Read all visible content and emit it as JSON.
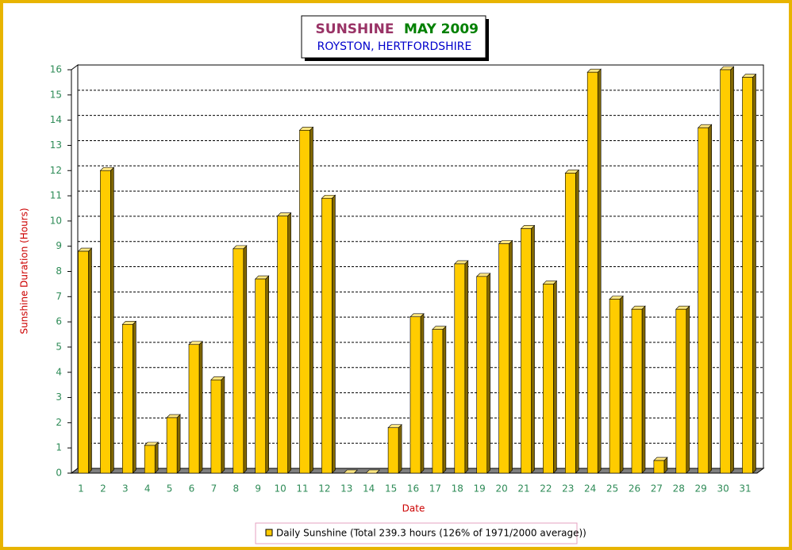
{
  "chart_data": {
    "type": "bar3d",
    "title": "SUNSHINE",
    "period": "MAY 2009",
    "subtitle": "ROYSTON, HERTFORDSHIRE",
    "x_label": "Date",
    "y_label": "Sunshine Duration (Hours)",
    "categories": [
      "1",
      "2",
      "3",
      "4",
      "5",
      "6",
      "7",
      "8",
      "9",
      "10",
      "11",
      "12",
      "13",
      "14",
      "15",
      "16",
      "17",
      "18",
      "19",
      "20",
      "21",
      "22",
      "23",
      "24",
      "25",
      "26",
      "27",
      "28",
      "29",
      "30",
      "31"
    ],
    "series": [
      {
        "name": "Daily Sunshine (Total 239.3 hours (126% of 1971/2000 average))",
        "color": "#ffcc00",
        "values": [
          8.8,
          12.0,
          5.9,
          1.1,
          2.2,
          5.1,
          3.7,
          8.9,
          7.7,
          10.2,
          13.6,
          10.9,
          0,
          0,
          1.8,
          6.2,
          5.7,
          8.3,
          7.8,
          9.1,
          9.7,
          7.5,
          11.9,
          15.9,
          6.9,
          6.5,
          0.5,
          6.5,
          13.7,
          16.0,
          15.7
        ]
      }
    ],
    "ylim": [
      0,
      16
    ],
    "yticks": [
      0,
      1,
      2,
      3,
      4,
      5,
      6,
      7,
      8,
      9,
      10,
      11,
      12,
      13,
      14,
      15,
      16
    ],
    "grid": true
  }
}
